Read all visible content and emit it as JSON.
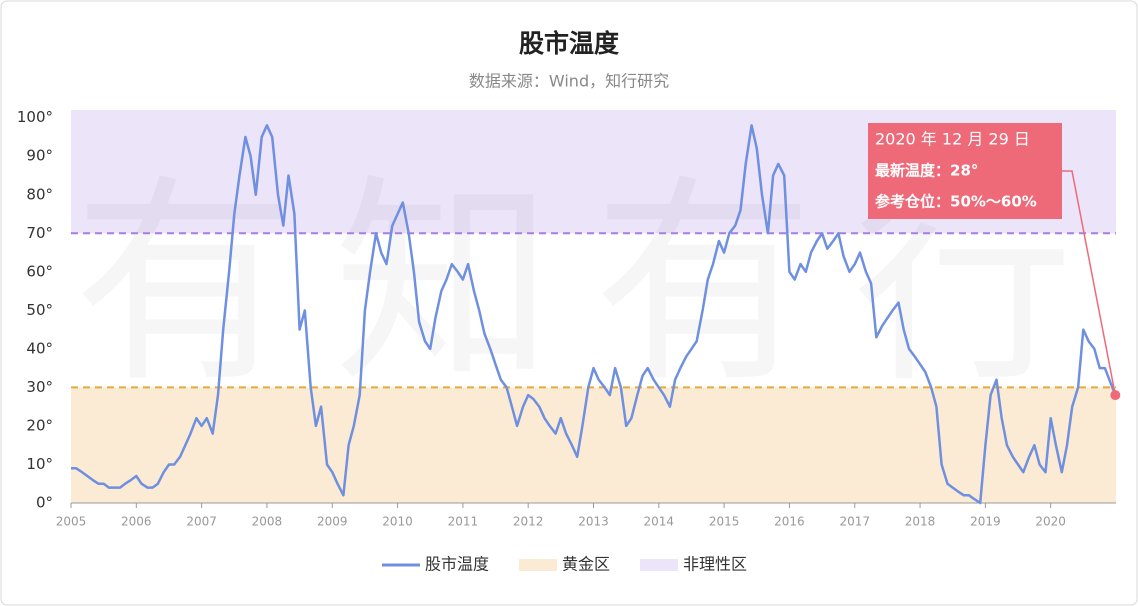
{
  "chart_data": {
    "type": "line",
    "title": "股市温度",
    "subtitle": "数据来源：Wind，知行研究",
    "watermark": "有知有行",
    "x": [
      2005,
      2005.08,
      2005.17,
      2005.25,
      2005.33,
      2005.42,
      2005.5,
      2005.58,
      2005.67,
      2005.75,
      2005.83,
      2005.92,
      2006,
      2006.08,
      2006.17,
      2006.25,
      2006.33,
      2006.42,
      2006.5,
      2006.58,
      2006.67,
      2006.75,
      2006.83,
      2006.92,
      2007,
      2007.08,
      2007.17,
      2007.25,
      2007.33,
      2007.42,
      2007.5,
      2007.58,
      2007.67,
      2007.75,
      2007.83,
      2007.92,
      2008,
      2008.08,
      2008.17,
      2008.25,
      2008.33,
      2008.42,
      2008.5,
      2008.58,
      2008.67,
      2008.75,
      2008.83,
      2008.92,
      2009,
      2009.08,
      2009.17,
      2009.25,
      2009.33,
      2009.42,
      2009.5,
      2009.58,
      2009.67,
      2009.75,
      2009.83,
      2009.92,
      2010,
      2010.08,
      2010.17,
      2010.25,
      2010.33,
      2010.42,
      2010.5,
      2010.58,
      2010.67,
      2010.75,
      2010.83,
      2010.92,
      2011,
      2011.08,
      2011.17,
      2011.25,
      2011.33,
      2011.42,
      2011.5,
      2011.58,
      2011.67,
      2011.75,
      2011.83,
      2011.92,
      2012,
      2012.08,
      2012.17,
      2012.25,
      2012.33,
      2012.42,
      2012.5,
      2012.58,
      2012.67,
      2012.75,
      2012.83,
      2012.92,
      2013,
      2013.08,
      2013.17,
      2013.25,
      2013.33,
      2013.42,
      2013.5,
      2013.58,
      2013.67,
      2013.75,
      2013.83,
      2013.92,
      2014,
      2014.08,
      2014.17,
      2014.25,
      2014.33,
      2014.42,
      2014.5,
      2014.58,
      2014.67,
      2014.75,
      2014.83,
      2014.92,
      2015,
      2015.08,
      2015.17,
      2015.25,
      2015.33,
      2015.42,
      2015.5,
      2015.58,
      2015.67,
      2015.75,
      2015.83,
      2015.92,
      2016,
      2016.08,
      2016.17,
      2016.25,
      2016.33,
      2016.42,
      2016.5,
      2016.58,
      2016.67,
      2016.75,
      2016.83,
      2016.92,
      2017,
      2017.08,
      2017.17,
      2017.25,
      2017.33,
      2017.42,
      2017.5,
      2017.58,
      2017.67,
      2017.75,
      2017.83,
      2017.92,
      2018,
      2018.08,
      2018.17,
      2018.25,
      2018.33,
      2018.42,
      2018.5,
      2018.58,
      2018.67,
      2018.75,
      2018.83,
      2018.92,
      2019,
      2019.08,
      2019.17,
      2019.25,
      2019.33,
      2019.42,
      2019.5,
      2019.58,
      2019.67,
      2019.75,
      2019.83,
      2019.92,
      2020,
      2020.08,
      2020.17,
      2020.25,
      2020.33,
      2020.42,
      2020.5,
      2020.58,
      2020.67,
      2020.75,
      2020.83,
      2020.99
    ],
    "series": [
      {
        "name": "股市温度",
        "color": "#6f8fe0",
        "values": [
          9,
          9,
          8,
          7,
          6,
          5,
          5,
          4,
          4,
          4,
          5,
          6,
          7,
          5,
          4,
          4,
          5,
          8,
          10,
          10,
          12,
          15,
          18,
          22,
          20,
          22,
          18,
          28,
          45,
          60,
          75,
          85,
          95,
          90,
          80,
          95,
          98,
          95,
          80,
          72,
          85,
          75,
          45,
          50,
          30,
          20,
          25,
          10,
          8,
          5,
          2,
          15,
          20,
          28,
          50,
          60,
          70,
          65,
          62,
          72,
          75,
          78,
          70,
          60,
          47,
          42,
          40,
          48,
          55,
          58,
          62,
          60,
          58,
          62,
          55,
          50,
          44,
          40,
          36,
          32,
          30,
          25,
          20,
          25,
          28,
          27,
          25,
          22,
          20,
          18,
          22,
          18,
          15,
          12,
          20,
          30,
          35,
          32,
          30,
          28,
          35,
          30,
          20,
          22,
          28,
          33,
          35,
          32,
          30,
          28,
          25,
          32,
          35,
          38,
          40,
          42,
          50,
          58,
          62,
          68,
          65,
          70,
          72,
          76,
          88,
          98,
          92,
          80,
          70,
          85,
          88,
          85,
          60,
          58,
          62,
          60,
          65,
          68,
          70,
          66,
          68,
          70,
          64,
          60,
          62,
          65,
          60,
          57,
          43,
          46,
          48,
          50,
          52,
          45,
          40,
          38,
          36,
          34,
          30,
          25,
          10,
          5,
          4,
          3,
          2,
          2,
          1,
          0,
          15,
          28,
          32,
          22,
          15,
          12,
          10,
          8,
          12,
          15,
          10,
          8,
          22,
          15,
          8,
          15,
          25,
          30,
          45,
          42,
          40,
          35,
          35,
          28
        ]
      }
    ],
    "bands": [
      {
        "name": "黄金区",
        "range": [
          0,
          30
        ],
        "color": "#fbebd4",
        "line_color": "#e6a93c"
      },
      {
        "name": "非理性区",
        "range": [
          70,
          102
        ],
        "color": "#ece4f8",
        "line_color": "#a77de0"
      }
    ],
    "annotation": {
      "texts": [
        "2020 年 12 月 29 日",
        "最新温度：28°",
        "参考仓位：50%～60%"
      ],
      "color": "#ef6a78"
    },
    "xlim": [
      2005,
      2021
    ],
    "xticks": [
      2005,
      2006,
      2007,
      2008,
      2009,
      2010,
      2011,
      2012,
      2013,
      2014,
      2015,
      2016,
      2017,
      2018,
      2019,
      2020
    ],
    "ylim": [
      0,
      102
    ],
    "yticks": [
      {
        "value": 0,
        "label": "0°"
      },
      {
        "value": 10,
        "label": "10°"
      },
      {
        "value": 20,
        "label": "20°"
      },
      {
        "value": 30,
        "label": "30°"
      },
      {
        "value": 40,
        "label": "40°"
      },
      {
        "value": 50,
        "label": "50°"
      },
      {
        "value": 60,
        "label": "60°"
      },
      {
        "value": 70,
        "label": "70°"
      },
      {
        "value": 80,
        "label": "80°"
      },
      {
        "value": 90,
        "label": "90°"
      },
      {
        "value": 100,
        "label": "100°"
      }
    ],
    "grid": false
  }
}
